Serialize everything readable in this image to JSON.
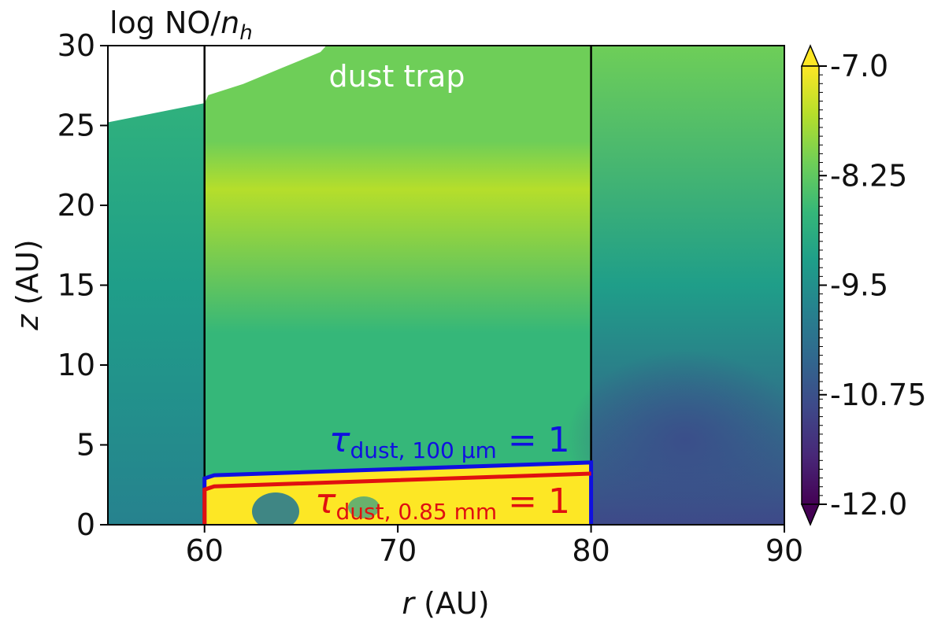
{
  "chart_data": {
    "type": "heatmap",
    "title": "log NO/n_h",
    "title_parts": {
      "prefix": "log NO/",
      "var": "n",
      "sub": "h"
    },
    "xlabel": "r (AU)",
    "xlabel_parts": {
      "var": "r",
      "rest": " (AU)"
    },
    "ylabel": "z (AU)",
    "ylabel_parts": {
      "var": "z",
      "rest": " (AU)"
    },
    "xlim": [
      55,
      90
    ],
    "ylim": [
      0,
      30
    ],
    "xticks": [
      60,
      70,
      80,
      90
    ],
    "yticks": [
      0,
      5,
      10,
      15,
      20,
      25,
      30
    ],
    "colormap": "viridis",
    "colorbar": {
      "range": [
        -12.0,
        -7.0
      ],
      "ticks": [
        -7.0,
        -8.25,
        -9.5,
        -10.75,
        -12.0
      ],
      "tick_labels": [
        "-7.0",
        "-8.25",
        "-9.5",
        "-10.75",
        "-12.0"
      ],
      "extend": "both"
    },
    "colors": {
      "viridis": [
        "#440154",
        "#482878",
        "#3e4989",
        "#31688e",
        "#26828e",
        "#1f9e89",
        "#35b779",
        "#6ece58",
        "#b5de2b",
        "#fde725"
      ],
      "tau_100um_line": "#1010e0",
      "tau_085mm_line": "#e01010",
      "boundary_line": "#000000",
      "annotation_white": "#ffffff"
    },
    "dust_trap": {
      "label": "dust trap",
      "r_min": 60,
      "r_max": 80
    },
    "upper_boundary": {
      "r": [
        55,
        60,
        60.2,
        62,
        64,
        66,
        66.3
      ],
      "z": [
        25.2,
        26.4,
        26.9,
        27.6,
        28.6,
        29.6,
        30
      ]
    },
    "contours": [
      {
        "name": "tau_dust_100um",
        "label_prefix": "τ",
        "label_sub": "dust, 100 μm",
        "label_suffix": " = 1",
        "r": [
          60,
          60,
          60.5,
          80,
          80
        ],
        "z": [
          0,
          2.9,
          3.1,
          3.9,
          0
        ]
      },
      {
        "name": "tau_dust_085mm",
        "label_prefix": "τ",
        "label_sub": "dust, 0.85 mm",
        "label_suffix": " = 1",
        "r": [
          60,
          60,
          60.5,
          80
        ],
        "z": [
          0,
          2.2,
          2.4,
          3.2
        ]
      }
    ],
    "field_samples": [
      {
        "r": 57,
        "z": 22,
        "value": -8.6
      },
      {
        "r": 57,
        "z": 15,
        "value": -9.3
      },
      {
        "r": 57,
        "z": 3,
        "value": -9.8
      },
      {
        "r": 63,
        "z": 23,
        "value": -8.0
      },
      {
        "r": 70,
        "z": 22,
        "value": -7.8
      },
      {
        "r": 70,
        "z": 12,
        "value": -8.6
      },
      {
        "r": 70,
        "z": 6,
        "value": -8.8
      },
      {
        "r": 70,
        "z": 1,
        "value": -7.0
      },
      {
        "r": 85,
        "z": 25,
        "value": -8.1
      },
      {
        "r": 85,
        "z": 15,
        "value": -9.5
      },
      {
        "r": 86,
        "z": 5,
        "value": -10.7
      }
    ]
  }
}
